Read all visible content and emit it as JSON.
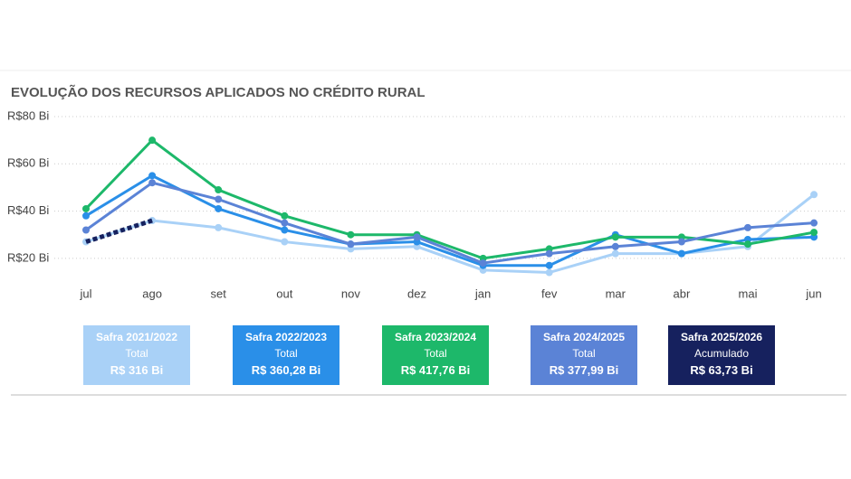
{
  "chart_data": {
    "type": "line",
    "title": "EVOLUÇÃO DOS RECURSOS APLICADOS NO CRÉDITO RURAL",
    "categories": [
      "jul",
      "ago",
      "set",
      "out",
      "nov",
      "dez",
      "jan",
      "fev",
      "mar",
      "abr",
      "mai",
      "jun"
    ],
    "ylim": [
      10,
      80
    ],
    "yticks": [
      {
        "value": 20,
        "label": "R$20 Bi"
      },
      {
        "value": 40,
        "label": "R$40 Bi"
      },
      {
        "value": 60,
        "label": "R$60 Bi"
      },
      {
        "value": 80,
        "label": "R$80 Bi"
      }
    ],
    "grid": true,
    "series": [
      {
        "name": "Safra 2021/2022",
        "color": "#a9d1f7",
        "values": [
          27,
          36,
          33,
          27,
          24,
          25,
          15,
          14,
          22,
          22,
          25,
          47
        ]
      },
      {
        "name": "Safra 2022/2023",
        "color": "#2a8fe8",
        "values": [
          38,
          55,
          41,
          32,
          26,
          27,
          17,
          17,
          30,
          22,
          28,
          29
        ]
      },
      {
        "name": "Safra 2023/2024",
        "color": "#1db86a",
        "values": [
          41,
          70,
          49,
          38,
          30,
          30,
          20,
          24,
          29,
          29,
          26,
          31
        ]
      },
      {
        "name": "Safra 2024/2025",
        "color": "#5b83d6",
        "values": [
          32,
          52,
          45,
          35,
          26,
          29,
          18,
          22,
          25,
          27,
          33,
          35
        ]
      },
      {
        "name": "Safra 2025/2026",
        "color": "#16215e",
        "line_style": "dashed",
        "values": [
          27,
          36,
          null,
          null,
          null,
          null,
          null,
          null,
          null,
          null,
          null,
          null
        ]
      }
    ],
    "cards": [
      {
        "subtitle": "Total",
        "value": "R$ 316 Bi"
      },
      {
        "subtitle": "Total",
        "value": "R$ 360,28 Bi"
      },
      {
        "subtitle": "Total",
        "value": "R$ 417,76 Bi"
      },
      {
        "subtitle": "Total",
        "value": "R$ 377,99 Bi"
      },
      {
        "subtitle": "Acumulado",
        "value": "R$ 63,73 Bi"
      }
    ]
  }
}
